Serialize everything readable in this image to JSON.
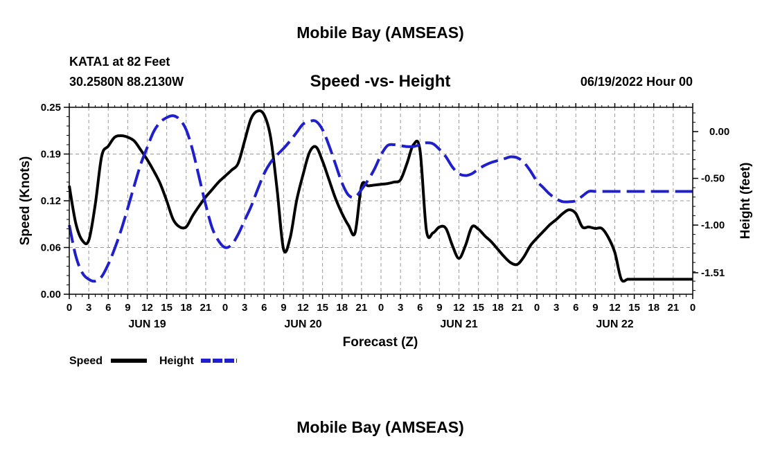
{
  "header": {
    "title": "Mobile Bay (AMSEAS)",
    "station": "KATA1 at 82 Feet",
    "coords": "30.2580N  88.2130W",
    "subtitle": "Speed -vs- Height",
    "datetime": "06/19/2022 Hour 00"
  },
  "footer": {
    "repeated_title": "Mobile Bay (AMSEAS)"
  },
  "legend": {
    "items": [
      {
        "label": "Speed",
        "color": "#000000",
        "style": "solid"
      },
      {
        "label": "Height",
        "color": "#1f1fcc",
        "style": "dashed"
      }
    ]
  },
  "chart_data": {
    "type": "line",
    "xlabel": "Forecast (Z)",
    "ylabel_left": "Speed (Knots)",
    "ylabel_right": "Height (feet)",
    "x_range_hours": [
      0,
      96
    ],
    "x_tick_labels": [
      "0",
      "3",
      "6",
      "9",
      "12",
      "15",
      "18",
      "21",
      "0",
      "3",
      "6",
      "9",
      "12",
      "15",
      "18",
      "21",
      "0",
      "3",
      "6",
      "9",
      "12",
      "15",
      "18",
      "21",
      "0",
      "3",
      "6",
      "9",
      "12",
      "15",
      "18",
      "21",
      "0"
    ],
    "date_labels": [
      {
        "label": "JUN 19",
        "hour": 12
      },
      {
        "label": "JUN 20",
        "hour": 36
      },
      {
        "label": "JUN 21",
        "hour": 60
      },
      {
        "label": "JUN 22",
        "hour": 84
      }
    ],
    "left_axis": {
      "ylim": [
        0,
        0.25
      ],
      "ticks": [
        "0.00",
        "0.06",
        "0.12",
        "0.19",
        "0.25"
      ]
    },
    "right_axis": {
      "ylim": [
        -1.74,
        0.26
      ],
      "ticks": [
        "0.00",
        "-0.50",
        "-1.00",
        "-1.51"
      ],
      "tick_values": [
        0,
        -0.5,
        -1.0,
        -1.51
      ]
    },
    "grid": true,
    "series": [
      {
        "name": "Speed",
        "axis": "left",
        "color": "#000000",
        "dash": "solid",
        "x": [
          0,
          1,
          2,
          3,
          4,
          5,
          6,
          7,
          8,
          9,
          10,
          11,
          12,
          13,
          14,
          15,
          16,
          17,
          18,
          19,
          20,
          21,
          22,
          23,
          24,
          25,
          26,
          27,
          28,
          29,
          30,
          31,
          32,
          33,
          34,
          35,
          36,
          37,
          38,
          39,
          40,
          41,
          42,
          43,
          44,
          45,
          46,
          47,
          48,
          49,
          50,
          51,
          52,
          53,
          54,
          55,
          56,
          57,
          58,
          59,
          60,
          61,
          62,
          63,
          64,
          65,
          66,
          67,
          68,
          69,
          70,
          71,
          72,
          73,
          74,
          75,
          76,
          77,
          78,
          79,
          80,
          81,
          82,
          83,
          84,
          85,
          86,
          87,
          88,
          89,
          90,
          91,
          92,
          93,
          94,
          95,
          96
        ],
        "values": [
          0.145,
          0.095,
          0.072,
          0.072,
          0.12,
          0.185,
          0.198,
          0.21,
          0.212,
          0.21,
          0.205,
          0.193,
          0.18,
          0.165,
          0.148,
          0.125,
          0.1,
          0.09,
          0.09,
          0.105,
          0.118,
          0.13,
          0.14,
          0.15,
          0.158,
          0.166,
          0.175,
          0.205,
          0.235,
          0.245,
          0.24,
          0.21,
          0.14,
          0.06,
          0.075,
          0.125,
          0.16,
          0.19,
          0.197,
          0.178,
          0.153,
          0.128,
          0.108,
          0.092,
          0.082,
          0.145,
          0.145,
          0.146,
          0.147,
          0.148,
          0.15,
          0.153,
          0.175,
          0.2,
          0.193,
          0.085,
          0.082,
          0.09,
          0.088,
          0.065,
          0.048,
          0.065,
          0.09,
          0.087,
          0.078,
          0.07,
          0.06,
          0.05,
          0.042,
          0.04,
          0.05,
          0.065,
          0.075,
          0.084,
          0.093,
          0.1,
          0.108,
          0.113,
          0.108,
          0.09,
          0.09,
          0.088,
          0.088,
          0.076,
          0.056,
          0.02,
          0.02,
          0.02,
          0.02,
          0.02,
          0.02,
          0.02,
          0.02,
          0.02,
          0.02,
          0.02,
          0.02
        ]
      },
      {
        "name": "Height",
        "axis": "right",
        "color": "#1f1fcc",
        "dash": "dashed",
        "x": [
          0,
          1,
          2,
          3,
          4,
          5,
          6,
          7,
          8,
          9,
          10,
          11,
          12,
          13,
          14,
          15,
          16,
          17,
          18,
          19,
          20,
          21,
          22,
          23,
          24,
          25,
          26,
          27,
          28,
          29,
          30,
          31,
          32,
          33,
          34,
          35,
          36,
          37,
          38,
          39,
          40,
          41,
          42,
          43,
          44,
          45,
          46,
          47,
          48,
          49,
          50,
          51,
          52,
          53,
          54,
          55,
          56,
          57,
          58,
          59,
          60,
          61,
          62,
          63,
          64,
          65,
          66,
          67,
          68,
          69,
          70,
          71,
          72,
          73,
          74,
          75,
          76,
          77,
          78,
          79,
          80,
          81,
          82,
          83,
          84,
          85,
          86,
          87,
          88,
          89,
          90,
          91,
          92,
          93,
          94,
          95,
          96
        ],
        "values": [
          -1.0,
          -1.33,
          -1.51,
          -1.58,
          -1.6,
          -1.55,
          -1.42,
          -1.25,
          -1.05,
          -0.82,
          -0.58,
          -0.35,
          -0.17,
          0.0,
          0.1,
          0.15,
          0.17,
          0.13,
          0.02,
          -0.2,
          -0.49,
          -0.78,
          -1.03,
          -1.17,
          -1.24,
          -1.21,
          -1.1,
          -0.95,
          -0.8,
          -0.62,
          -0.45,
          -0.33,
          -0.25,
          -0.18,
          -0.1,
          -0.01,
          0.08,
          0.11,
          0.11,
          0.02,
          -0.15,
          -0.35,
          -0.55,
          -0.68,
          -0.7,
          -0.62,
          -0.52,
          -0.4,
          -0.25,
          -0.15,
          -0.14,
          -0.15,
          -0.16,
          -0.16,
          -0.14,
          -0.12,
          -0.13,
          -0.19,
          -0.27,
          -0.38,
          -0.45,
          -0.47,
          -0.45,
          -0.4,
          -0.36,
          -0.33,
          -0.31,
          -0.29,
          -0.27,
          -0.28,
          -0.33,
          -0.42,
          -0.53,
          -0.6,
          -0.67,
          -0.72,
          -0.75,
          -0.75,
          -0.74,
          -0.69,
          -0.64,
          -0.64,
          -0.64,
          -0.64,
          -0.64,
          -0.64,
          -0.64,
          -0.64,
          -0.64,
          -0.64,
          -0.64,
          -0.64,
          -0.64,
          -0.64,
          -0.64,
          -0.64,
          -0.64
        ]
      }
    ]
  }
}
